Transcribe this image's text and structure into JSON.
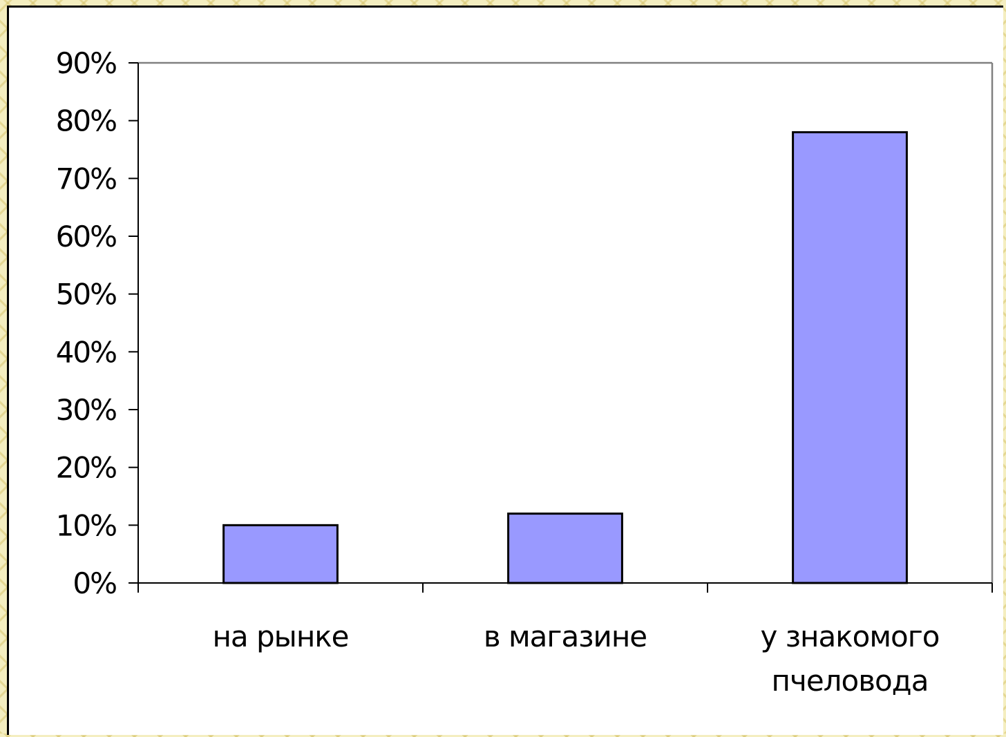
{
  "chart_data": {
    "type": "bar",
    "categories": [
      "на рынке",
      "в магазине",
      "у знакомого пчеловода"
    ],
    "category_lines": [
      [
        "на рынке"
      ],
      [
        "в магазине"
      ],
      [
        "у знакомого",
        "пчеловода"
      ]
    ],
    "values": [
      0.1,
      0.12,
      0.78
    ],
    "ylim": [
      0,
      0.9
    ],
    "yticks": [
      0,
      0.1,
      0.2,
      0.3,
      0.4,
      0.5,
      0.6,
      0.7,
      0.8,
      0.9
    ],
    "ytick_labels": [
      "0%",
      "10%",
      "20%",
      "30%",
      "40%",
      "50%",
      "60%",
      "70%",
      "80%",
      "90%"
    ],
    "grid": false,
    "legend": "none"
  },
  "colors": {
    "bar_fill": "#9999ff",
    "bar_stroke": "#000000",
    "axis": "#000000",
    "plot_border": "#808080",
    "background": "#ffffff"
  }
}
